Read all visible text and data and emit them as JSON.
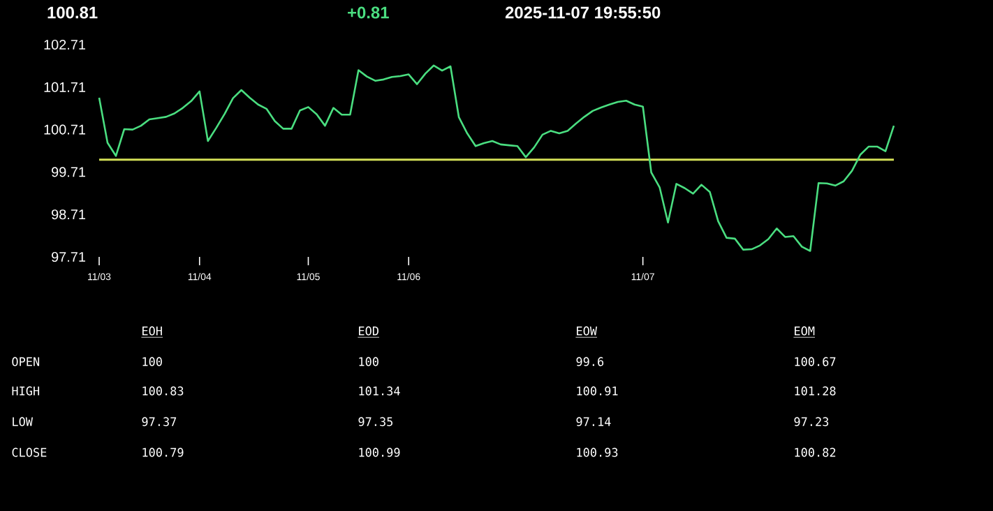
{
  "chart_data": [
    {
      "type": "line",
      "annotations": [
        "100.81",
        "+0.81",
        "2025-11-07   19:55:50"
      ],
      "categories": [
        "11/03",
        null,
        null,
        null,
        null,
        null,
        null,
        null,
        null,
        null,
        null,
        null,
        "11/04",
        null,
        null,
        null,
        null,
        null,
        null,
        null,
        null,
        null,
        null,
        null,
        null,
        "11/05",
        null,
        null,
        null,
        null,
        null,
        null,
        null,
        null,
        null,
        null,
        null,
        "11/06",
        null,
        null,
        null,
        null,
        null,
        null,
        null,
        null,
        null,
        null,
        null,
        null,
        null,
        null,
        null,
        null,
        null,
        null,
        null,
        null,
        null,
        null,
        null,
        null,
        null,
        null,
        null,
        "11/07",
        null,
        null,
        null,
        null,
        null,
        null,
        null,
        null,
        null,
        null,
        null,
        null,
        null,
        null,
        null,
        null,
        null,
        null,
        null,
        null,
        null,
        null,
        null,
        null,
        null,
        null,
        null,
        null,
        null,
        null
      ],
      "series": [
        {
          "color": "#4ade80",
          "values": [
            101.46,
            100.4,
            100.09,
            100.72,
            100.71,
            100.8,
            100.95,
            100.98,
            101.01,
            101.09,
            101.22,
            101.38,
            101.61,
            100.44,
            100.75,
            101.08,
            101.45,
            101.64,
            101.46,
            101.3,
            101.2,
            100.91,
            100.73,
            100.73,
            101.16,
            101.24,
            101.07,
            100.8,
            101.22,
            101.06,
            101.06,
            102.11,
            101.96,
            101.86,
            101.89,
            101.95,
            101.97,
            102.01,
            101.78,
            102.03,
            102.22,
            102.1,
            102.2,
            101.0,
            100.62,
            100.32,
            100.39,
            100.44,
            100.36,
            100.34,
            100.32,
            100.06,
            100.29,
            100.59,
            100.68,
            100.62,
            100.68,
            100.85,
            101.01,
            101.15,
            101.23,
            101.3,
            101.36,
            101.39,
            101.3,
            101.25,
            99.7,
            99.35,
            98.52,
            99.43,
            99.33,
            99.2,
            99.41,
            99.24,
            98.55,
            98.16,
            98.14,
            97.88,
            97.89,
            97.98,
            98.13,
            98.38,
            98.18,
            98.2,
            97.95,
            97.85,
            99.45,
            99.44,
            99.39,
            99.49,
            99.74,
            100.12,
            100.31,
            100.31,
            100.2,
            100.8
          ]
        }
      ],
      "ylim": [
        97.71,
        102.71
      ],
      "yticks": [
        97.71,
        98.71,
        99.71,
        100.71,
        101.71,
        102.71
      ],
      "ref_lines": [
        {
          "axis": "y",
          "value": 100,
          "color": "#d4e157"
        }
      ],
      "grid": false
    },
    {
      "type": "other",
      "categories": [
        "EOH",
        "EOD",
        "EOW",
        "EOM"
      ],
      "y_categories": [
        "OPEN",
        "HIGH",
        "LOW",
        "CLOSE"
      ],
      "cell_labels": [
        [
          "100",
          "100",
          "99.6",
          "100.67"
        ],
        [
          "100.83",
          "101.34",
          "100.91",
          "101.28"
        ],
        [
          "97.37",
          "97.35",
          "97.14",
          "97.23"
        ],
        [
          "100.79",
          "100.99",
          "100.93",
          "100.82"
        ]
      ]
    }
  ]
}
